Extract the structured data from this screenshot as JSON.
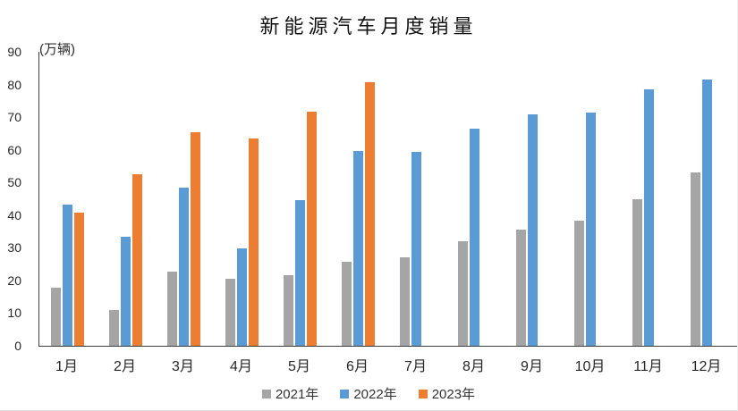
{
  "chart_data": {
    "type": "bar",
    "title": "新能源汽车月度销量",
    "unit_label": "(万辆)",
    "categories": [
      "1月",
      "2月",
      "3月",
      "4月",
      "5月",
      "6月",
      "7月",
      "8月",
      "9月",
      "10月",
      "11月",
      "12月"
    ],
    "series": [
      {
        "name": "2021年",
        "color": "#A5A5A5",
        "values": [
          17.9,
          11.0,
          22.6,
          20.6,
          21.7,
          25.6,
          27.1,
          32.1,
          35.7,
          38.3,
          45.0,
          53.1
        ]
      },
      {
        "name": "2022年",
        "color": "#5B9BD5",
        "values": [
          43.1,
          33.4,
          48.4,
          29.9,
          44.7,
          59.6,
          59.3,
          66.6,
          70.8,
          71.4,
          78.6,
          81.4
        ]
      },
      {
        "name": "2023年",
        "color": "#ED7D31",
        "values": [
          40.8,
          52.5,
          65.3,
          63.6,
          71.7,
          80.6,
          null,
          null,
          null,
          null,
          null,
          null
        ]
      }
    ],
    "y_ticks": [
      0,
      10,
      20,
      30,
      40,
      50,
      60,
      70,
      80,
      90
    ],
    "ylim": [
      0,
      90
    ],
    "xlabel": "",
    "ylabel": "",
    "grid": false,
    "legend_position": "bottom",
    "axis_color": "#3f3f3f",
    "background_color": "#ffffff"
  }
}
